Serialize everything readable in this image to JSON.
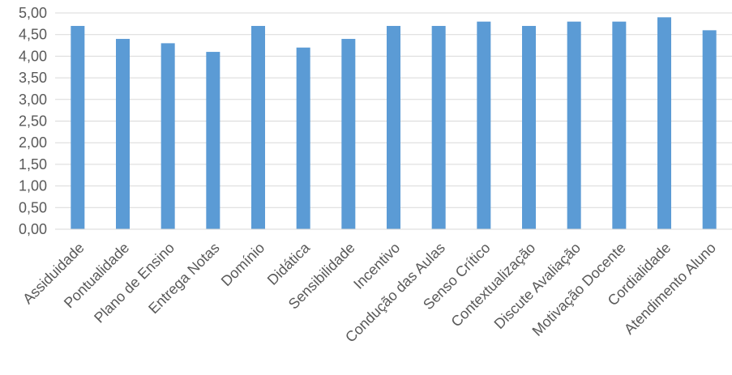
{
  "chart_data": {
    "type": "bar",
    "title": "",
    "xlabel": "",
    "ylabel": "",
    "categories": [
      "Assiduidade",
      "Pontualidade",
      "Plano de Ensino",
      "Entrega Notas",
      "Domínio",
      "Didática",
      "Sensibilidade",
      "Incentivo",
      "Condução das Aulas",
      "Senso Crítico",
      "Contextualização",
      "Discute Avaliação",
      "Motivação Docente",
      "Cordialidade",
      "Atendimento Aluno"
    ],
    "values": [
      4.7,
      4.4,
      4.3,
      4.1,
      4.7,
      4.2,
      4.4,
      4.7,
      4.7,
      4.8,
      4.7,
      4.8,
      4.8,
      4.9,
      4.6
    ],
    "ylim": [
      0,
      5
    ],
    "yticks": [
      "0,00",
      "0,50",
      "1,00",
      "1,50",
      "2,00",
      "2,50",
      "3,00",
      "3,50",
      "4,00",
      "4,50",
      "5,00"
    ],
    "grid": true,
    "legend": "none",
    "bar_color": "#5b9bd5"
  }
}
